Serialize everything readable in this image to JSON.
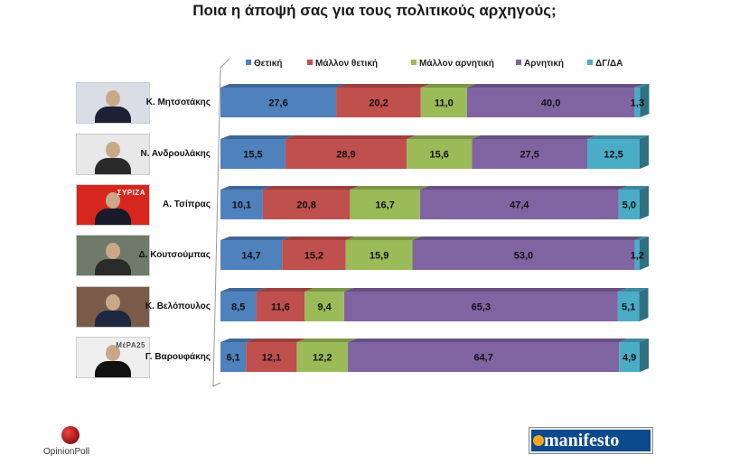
{
  "chart_data": {
    "type": "bar",
    "orientation": "horizontal",
    "stacked": true,
    "title": "Ποια η άποψή σας για τους πολιτικούς αρχηγούς;",
    "legend_position": "top",
    "categories": [
      "Κ. Μητσοτάκης",
      "Ν. Ανδρουλάκης",
      "Α. Τσίπρας",
      "Δ. Κουτσούμπας",
      "Κ. Βελόπουλος",
      "Γ. Βαρουφάκης"
    ],
    "xlim": [
      0,
      100
    ],
    "grid": false,
    "series": [
      {
        "name": "Θετική",
        "color": "#4f81bd",
        "values": [
          27.6,
          15.5,
          10.1,
          14.7,
          8.5,
          6.1
        ],
        "labels": [
          "27,6",
          "15,5",
          "10,1",
          "14,7",
          "8,5",
          "6,1"
        ]
      },
      {
        "name": "Μάλλον θετική",
        "color": "#c0504d",
        "values": [
          20.2,
          28.9,
          20.8,
          15.2,
          11.6,
          12.1
        ],
        "labels": [
          "20,2",
          "28,9",
          "20,8",
          "15,2",
          "11,6",
          "12,1"
        ]
      },
      {
        "name": "Μάλλον αρνητική",
        "color": "#9bbb59",
        "values": [
          11.0,
          15.6,
          16.7,
          15.9,
          9.4,
          12.2
        ],
        "labels": [
          "11,0",
          "15,6",
          "16,7",
          "15,9",
          "9,4",
          "12,2"
        ]
      },
      {
        "name": "Αρνητική",
        "color": "#8064a2",
        "values": [
          40.0,
          27.5,
          47.4,
          53.0,
          65.3,
          64.7
        ],
        "labels": [
          "40,0",
          "27,5",
          "47,4",
          "53,0",
          "65,3",
          "64,7"
        ]
      },
      {
        "name": "ΔΓ/ΔΑ",
        "color": "#4bacc6",
        "values": [
          1.3,
          12.5,
          5.0,
          1.2,
          5.1,
          4.9
        ],
        "labels": [
          "1,3",
          "12,5",
          "5,0",
          "1,2",
          "5,1",
          "4,9"
        ]
      }
    ]
  },
  "photos": [
    {
      "name": "photo-mitsotakis",
      "bg": "#d9dde6",
      "suit": "#1c2233",
      "sign": ""
    },
    {
      "name": "photo-androulakis",
      "bg": "#e8e8e8",
      "suit": "#2a2a2a",
      "sign": ""
    },
    {
      "name": "photo-tsipras",
      "bg": "#d7261e",
      "suit": "#1a1a2a",
      "sign": "ΣΥΡΙΖΑ"
    },
    {
      "name": "photo-koutsoumpas",
      "bg": "#6f7a6a",
      "suit": "#2b2b2b",
      "sign": ""
    },
    {
      "name": "photo-velopoulos",
      "bg": "#7a5a48",
      "suit": "#1e2840",
      "sign": ""
    },
    {
      "name": "photo-varoufakis",
      "bg": "#eeeeee",
      "suit": "#111111",
      "sign": "ΜέΡΑ25"
    }
  ],
  "logos": {
    "opinion_poll": "OpinionPoll",
    "manifesto": "manifesto"
  }
}
